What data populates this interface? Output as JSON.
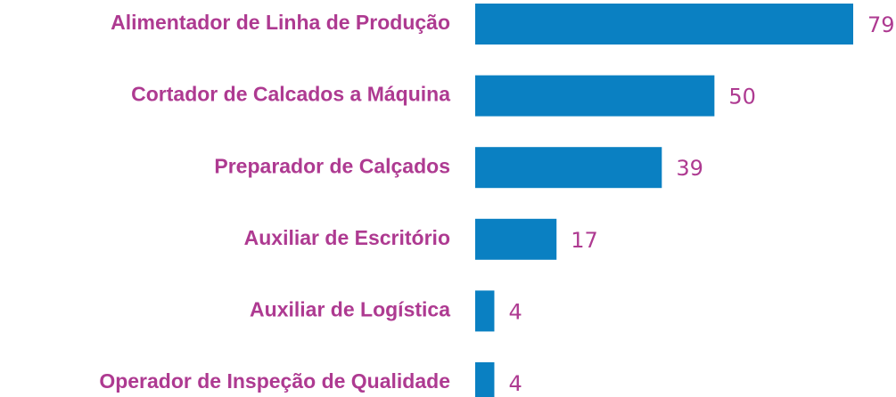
{
  "chart_data": {
    "type": "barh",
    "categories": [
      "Alimentador de Linha de Produção",
      "Cortador de Calcados a Máquina",
      "Preparador de Calçados",
      "Auxiliar de Escritório",
      "Auxiliar de Logística",
      "Operador de Inspeção de Qualidade"
    ],
    "values": [
      79,
      50,
      39,
      17,
      4,
      4
    ],
    "color": "#0a80c2",
    "label_color": "#ae3a91",
    "xlim": [
      0,
      79
    ]
  }
}
